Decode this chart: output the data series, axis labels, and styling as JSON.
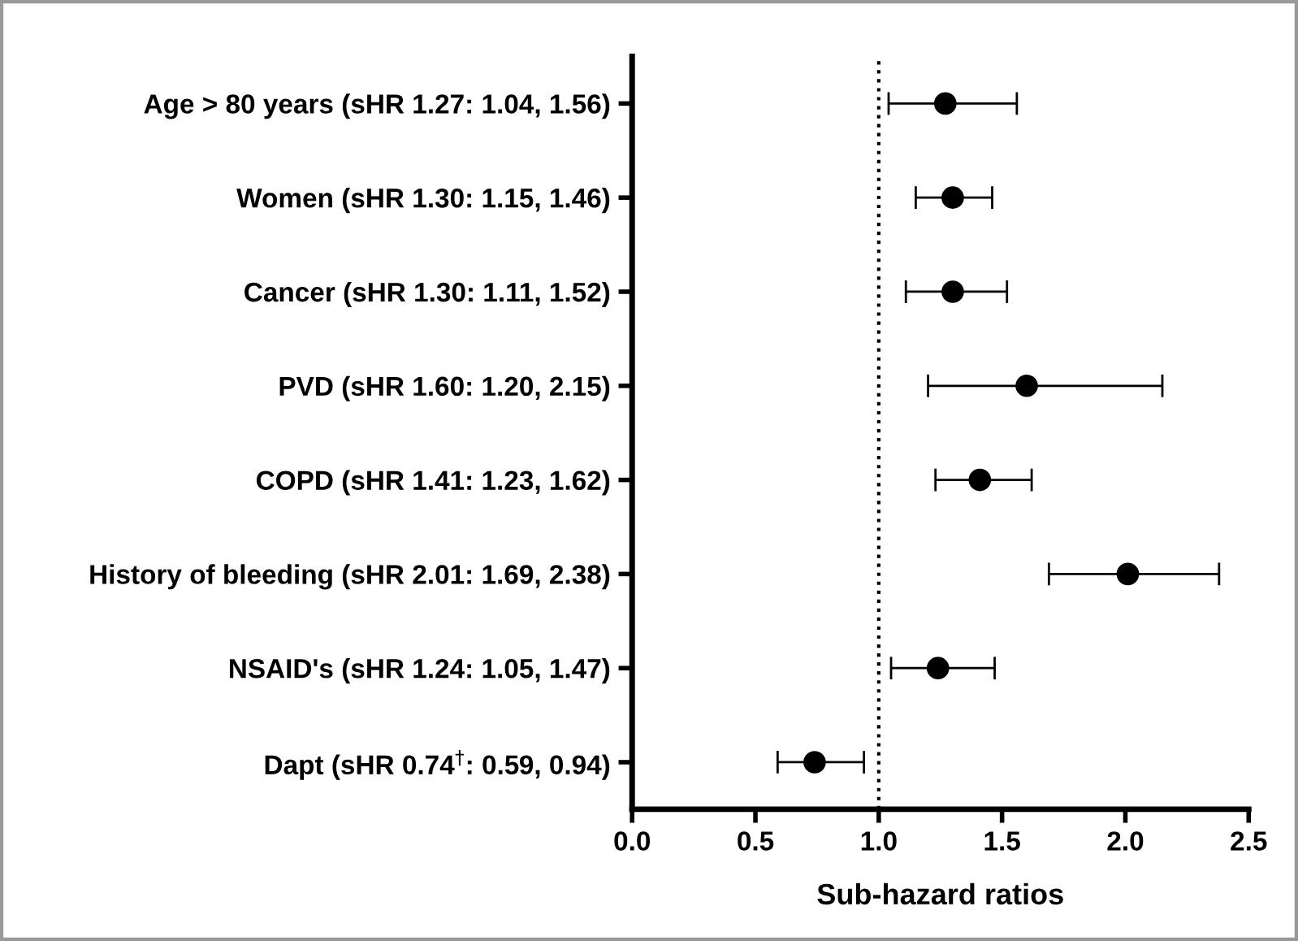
{
  "chart_data": {
    "type": "scatter",
    "orientation": "horizontal",
    "xlabel": "Sub-hazard ratios",
    "categories": [
      "Age > 80 years (sHR 1.27: 1.04, 1.56)",
      "Women (sHR 1.30: 1.15, 1.46)",
      "Cancer (sHR 1.30: 1.11, 1.52)",
      "PVD (sHR 1.60: 1.20, 2.15)",
      "COPD (sHR 1.41: 1.23, 1.62)",
      "History of bleeding (sHR 2.01: 1.69, 2.38)",
      "NSAID's (sHR 1.24: 1.05, 1.47)",
      "Dapt (sHR 0.74$^{†}$: 0.59, 0.94)"
    ],
    "series": [
      {
        "color": "#000000",
        "values": [
          1.27,
          1.3,
          1.3,
          1.6,
          1.41,
          2.01,
          1.24,
          0.74
        ],
        "errors": [
          [
            1.04,
            1.56
          ],
          [
            1.15,
            1.46
          ],
          [
            1.11,
            1.52
          ],
          [
            1.2,
            2.15
          ],
          [
            1.23,
            1.62
          ],
          [
            1.69,
            2.38
          ],
          [
            1.05,
            1.47
          ],
          [
            0.59,
            0.94
          ]
        ]
      }
    ],
    "xlim": [
      0,
      2.5
    ],
    "xticks": [
      {
        "value": 0,
        "label": "0.0"
      },
      {
        "value": 0.5,
        "label": "0.5"
      },
      {
        "value": 1,
        "label": "1.0"
      },
      {
        "value": 1.5,
        "label": "1.5"
      },
      {
        "value": 2,
        "label": "2.0"
      },
      {
        "value": 2.5,
        "label": "2.5"
      }
    ],
    "ref_lines": [
      {
        "axis": "x",
        "value": 1.0,
        "line_style": "dotted",
        "color": "#000000"
      }
    ],
    "marker": "circle",
    "grid": false,
    "legend": false
  }
}
